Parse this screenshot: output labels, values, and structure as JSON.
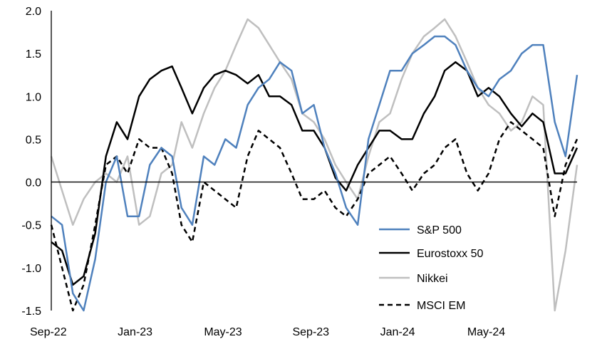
{
  "chart_data": {
    "type": "line",
    "title": "",
    "xlabel": "",
    "ylabel": "",
    "ylim": [
      -1.5,
      2.0
    ],
    "yticks": [
      "2.0",
      "1.5",
      "1.0",
      "0.5",
      "0.0",
      "-0.5",
      "-1.0",
      "-1.5"
    ],
    "ytick_values": [
      2.0,
      1.5,
      1.0,
      0.5,
      0.0,
      -0.5,
      -1.0,
      -1.5
    ],
    "xlim": [
      "2022-09-01",
      "2024-09-01"
    ],
    "xticks": [
      {
        "label": "Sep-22",
        "date": "2022-09-01"
      },
      {
        "label": "Jan-23",
        "date": "2023-01-01"
      },
      {
        "label": "May-23",
        "date": "2023-05-01"
      },
      {
        "label": "Sep-23",
        "date": "2023-09-01"
      },
      {
        "label": "Jan-24",
        "date": "2024-01-01"
      },
      {
        "label": "May-24",
        "date": "2024-05-01"
      }
    ],
    "grid": false,
    "zero_line": true,
    "legend_position": "bottom-right",
    "x": [
      "2022-09-01",
      "2022-09-16",
      "2022-10-01",
      "2022-10-16",
      "2022-11-01",
      "2022-11-16",
      "2022-12-01",
      "2022-12-16",
      "2023-01-01",
      "2023-01-16",
      "2023-02-01",
      "2023-02-16",
      "2023-03-01",
      "2023-03-16",
      "2023-04-01",
      "2023-04-16",
      "2023-05-01",
      "2023-05-16",
      "2023-06-01",
      "2023-06-16",
      "2023-07-01",
      "2023-07-16",
      "2023-08-01",
      "2023-08-16",
      "2023-09-01",
      "2023-09-16",
      "2023-10-01",
      "2023-10-16",
      "2023-11-01",
      "2023-11-16",
      "2023-12-01",
      "2023-12-16",
      "2024-01-01",
      "2024-01-16",
      "2024-02-01",
      "2024-02-16",
      "2024-03-01",
      "2024-03-16",
      "2024-04-01",
      "2024-04-16",
      "2024-05-01",
      "2024-05-16",
      "2024-06-01",
      "2024-06-16",
      "2024-07-01",
      "2024-07-16",
      "2024-08-01",
      "2024-08-16",
      "2024-09-01"
    ],
    "series": [
      {
        "name": "S&P 500",
        "color": "#4f81bd",
        "dash": "solid",
        "values": [
          -0.4,
          -0.5,
          -1.3,
          -1.5,
          -0.9,
          0.0,
          0.3,
          -0.4,
          -0.4,
          0.2,
          0.4,
          0.3,
          -0.3,
          -0.5,
          0.3,
          0.2,
          0.5,
          0.4,
          0.9,
          1.1,
          1.2,
          1.4,
          1.3,
          0.8,
          0.9,
          0.4,
          0.1,
          -0.3,
          -0.5,
          0.5,
          0.9,
          1.3,
          1.3,
          1.5,
          1.6,
          1.7,
          1.7,
          1.6,
          1.3,
          1.1,
          1.0,
          1.2,
          1.3,
          1.5,
          1.6,
          1.6,
          0.7,
          0.3,
          1.25
        ]
      },
      {
        "name": "Eurostoxx 50",
        "color": "#000000",
        "dash": "solid",
        "values": [
          -0.7,
          -0.8,
          -1.2,
          -1.1,
          -0.6,
          0.3,
          0.7,
          0.5,
          1.0,
          1.2,
          1.3,
          1.35,
          1.1,
          0.8,
          1.1,
          1.25,
          1.3,
          1.25,
          1.15,
          1.25,
          1.0,
          1.0,
          0.9,
          0.6,
          0.6,
          0.4,
          0.05,
          -0.1,
          0.2,
          0.4,
          0.6,
          0.6,
          0.5,
          0.5,
          0.8,
          1.0,
          1.3,
          1.4,
          1.3,
          1.0,
          1.1,
          1.0,
          0.8,
          0.65,
          0.8,
          0.7,
          0.1,
          0.1,
          0.4
        ]
      },
      {
        "name": "Nikkei",
        "color": "#bfbfbf",
        "dash": "solid",
        "values": [
          0.3,
          -0.1,
          -0.5,
          -0.2,
          0.0,
          0.1,
          0.0,
          0.3,
          -0.5,
          -0.4,
          0.1,
          0.2,
          0.7,
          0.4,
          0.8,
          1.1,
          1.3,
          1.6,
          1.9,
          1.8,
          1.6,
          1.4,
          1.2,
          0.8,
          0.7,
          0.5,
          0.2,
          0.0,
          -0.2,
          0.3,
          0.7,
          0.8,
          1.2,
          1.5,
          1.7,
          1.8,
          1.9,
          1.7,
          1.4,
          1.1,
          0.9,
          0.8,
          0.6,
          0.7,
          1.0,
          0.9,
          -1.5,
          -0.8,
          0.2
        ]
      },
      {
        "name": "MSCI EM",
        "color": "#000000",
        "dash": "dashed",
        "values": [
          -0.5,
          -1.0,
          -1.5,
          -1.2,
          -0.5,
          0.2,
          0.3,
          0.1,
          0.5,
          0.4,
          0.4,
          0.1,
          -0.5,
          -0.7,
          0.0,
          -0.1,
          -0.2,
          -0.3,
          0.3,
          0.6,
          0.5,
          0.4,
          0.1,
          -0.2,
          -0.2,
          -0.1,
          -0.3,
          -0.4,
          -0.2,
          0.1,
          0.2,
          0.3,
          0.1,
          -0.1,
          0.1,
          0.2,
          0.4,
          0.5,
          0.1,
          -0.1,
          0.1,
          0.5,
          0.7,
          0.6,
          0.5,
          0.4,
          -0.4,
          0.2,
          0.5
        ]
      }
    ]
  }
}
